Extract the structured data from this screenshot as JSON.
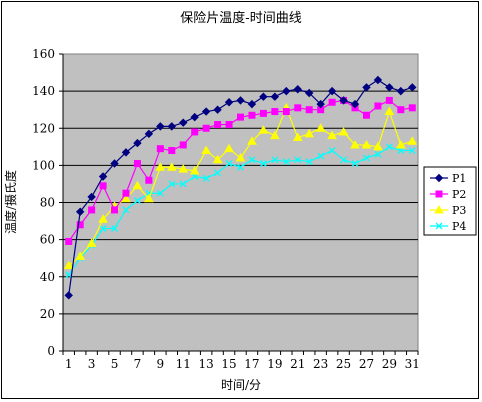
{
  "chart_data": {
    "type": "line",
    "title": "保险片温度-时间曲线",
    "xlabel": "时间/分",
    "ylabel": "温度/摄氏度",
    "ylim": [
      0,
      160
    ],
    "yticks": [
      0,
      20,
      40,
      60,
      80,
      100,
      120,
      140,
      160
    ],
    "x": [
      1,
      2,
      3,
      4,
      5,
      6,
      7,
      8,
      9,
      10,
      11,
      12,
      13,
      14,
      15,
      16,
      17,
      18,
      19,
      20,
      21,
      22,
      23,
      24,
      25,
      26,
      27,
      28,
      29,
      30,
      31
    ],
    "xtick_labels": [
      1,
      3,
      5,
      7,
      9,
      11,
      13,
      15,
      17,
      19,
      21,
      23,
      25,
      27,
      29,
      31
    ],
    "grid": "horizontal",
    "plot_background": "#c0c0c0",
    "legend_position": "right",
    "series": [
      {
        "name": "P1",
        "color": "#000080",
        "marker": "diamond",
        "values": [
          30,
          75,
          83,
          94,
          101,
          107,
          112,
          117,
          121,
          121,
          123,
          126,
          129,
          130,
          134,
          135,
          133,
          137,
          137,
          140,
          141,
          139,
          133,
          140,
          135,
          133,
          142,
          146,
          142,
          140,
          142
        ]
      },
      {
        "name": "P2",
        "color": "#ff00ff",
        "marker": "square",
        "values": [
          59,
          68,
          76,
          89,
          76,
          85,
          101,
          92,
          109,
          108,
          111,
          118,
          120,
          122,
          122,
          126,
          127,
          128,
          129,
          129,
          131,
          130,
          130,
          134,
          135,
          131,
          127,
          132,
          135,
          130,
          131
        ]
      },
      {
        "name": "P3",
        "color": "#ffff00",
        "marker": "triangle",
        "values": [
          46,
          51,
          58,
          71,
          78,
          82,
          89,
          82,
          99,
          99,
          98,
          97,
          108,
          103,
          109,
          104,
          113,
          119,
          116,
          131,
          115,
          117,
          120,
          116,
          118,
          111,
          111,
          110,
          129,
          111,
          113
        ]
      },
      {
        "name": "P4",
        "color": "#00ffff",
        "marker": "x",
        "values": [
          41,
          50,
          57,
          66,
          66,
          76,
          81,
          85,
          85,
          90,
          90,
          94,
          93,
          96,
          101,
          99,
          103,
          101,
          103,
          102,
          103,
          102,
          105,
          108,
          103,
          101,
          104,
          106,
          110,
          108,
          108
        ]
      }
    ]
  }
}
